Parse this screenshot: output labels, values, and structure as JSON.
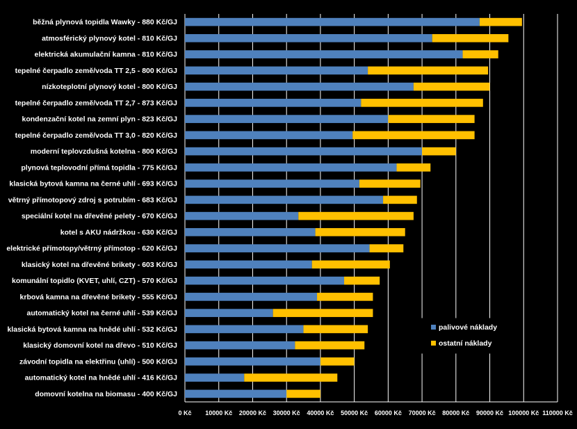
{
  "colors": {
    "background": "#000000",
    "grid": "#ffffff",
    "fuel": "#4f81bd",
    "other": "#ffc000"
  },
  "chart_data": {
    "type": "bar",
    "orientation": "horizontal",
    "stacked": true,
    "title": "",
    "xlabel": "",
    "ylabel": "",
    "xlim": [
      0,
      110000
    ],
    "xticks": [
      "0 Kč",
      "10000 Kč",
      "20000 Kč",
      "30000 Kč",
      "40000 Kč",
      "50000 Kč",
      "60000 Kč",
      "70000 Kč",
      "80000 Kč",
      "90000 Kč",
      "100000 Kč",
      "110000 Kč"
    ],
    "grid": "vertical",
    "legend_position": "bottom-right",
    "categories": [
      "běžná plynová topidla Wawky - 880 Kč/GJ",
      "atmosférický plynový kotel - 810 Kč/GJ",
      "elektrická akumulační kamna - 810 Kč/GJ",
      "tepelné čerpadlo země/voda TT 2,5 - 800 Kč/GJ",
      "nízkoteplotní plynový kotel - 800 Kč/GJ",
      "tepelné čerpadlo země/voda TT 2,7 - 873 Kč/GJ",
      "kondenzační kotel na zemní plyn - 823 Kč/GJ",
      "tepelné čerpadlo země/voda TT 3,0 - 820 Kč/GJ",
      "moderní teplovzdušná kotelna - 800 Kč/GJ",
      "plynová teplovodní přímá topidla - 775 Kč/GJ",
      "klasická bytová kamna na černé uhlí - 693 Kč/GJ",
      "větrný přímotopový zdroj s potrubím - 683 Kč/GJ",
      "speciální kotel na dřevěné pelety - 670 Kč/GJ",
      "kotel s AKU nádržkou - 630 Kč/GJ",
      "elektrické přímotopy/větrný přímotop - 620 Kč/GJ",
      "klasický kotel na dřevěné brikety - 603 Kč/GJ",
      "komunální topidlo (KVET, uhlí, CZT) - 570 Kč/GJ",
      "krbová kamna na dřevěné brikety - 555 Kč/GJ",
      "automatický kotel na černé uhlí - 539 Kč/GJ",
      "klasická bytová kamna na hnědé uhlí - 532 Kč/GJ",
      "klasický domovní kotel na dřevo - 510 Kč/GJ",
      "závodní topidla na elektřinu (uhlí) - 500 Kč/GJ",
      "automatický kotel na hnědé uhlí - 416 Kč/GJ",
      "domovní kotelna na biomasu - 400 Kč/GJ"
    ],
    "series": [
      {
        "name": "palivové náklady",
        "values": [
          87000,
          73000,
          82000,
          54000,
          67500,
          52000,
          60000,
          49500,
          70000,
          62500,
          51500,
          58500,
          33500,
          38500,
          54500,
          37500,
          47000,
          39000,
          26000,
          35000,
          32500,
          40000,
          17500,
          30000
        ]
      },
      {
        "name": "ostatní náklady",
        "values": [
          12500,
          22500,
          10500,
          35500,
          22500,
          36000,
          25500,
          36000,
          10000,
          10000,
          18000,
          10000,
          34000,
          26500,
          10000,
          23000,
          10500,
          16500,
          29500,
          19000,
          20500,
          10000,
          27500,
          10000
        ]
      }
    ]
  }
}
